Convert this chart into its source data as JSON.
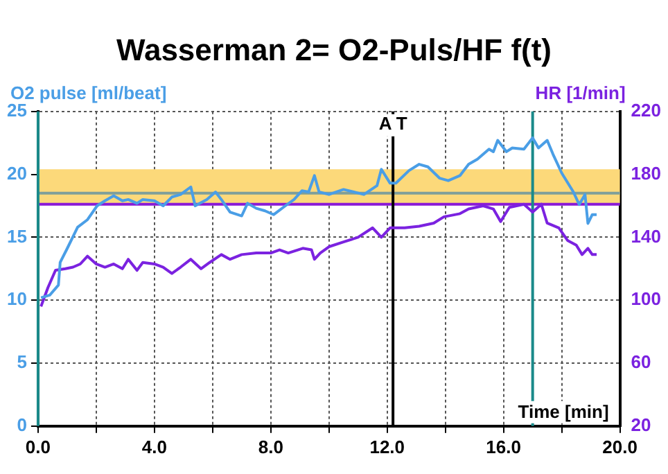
{
  "chart_data": {
    "type": "line",
    "title": "Wasserman 2= O2-Puls/HF f(t)",
    "xlabel": "Time [min]",
    "ylabel": "O2 pulse [ml/beat]",
    "y2label": "HR [1/min]",
    "series": [
      {
        "color": "#4a9ee6",
        "axis": "y",
        "x": [
          0.1,
          0.4,
          0.7,
          0.76,
          1.0,
          1.36,
          1.7,
          2.03,
          2.3,
          2.6,
          2.9,
          3.1,
          3.4,
          3.6,
          4.0,
          4.3,
          4.6,
          4.9,
          5.25,
          5.4,
          5.8,
          6.1,
          6.3,
          6.6,
          7.0,
          7.2,
          7.5,
          7.8,
          8.1,
          8.5,
          8.8,
          9.07,
          9.3,
          9.5,
          9.66,
          10.0,
          10.5,
          11.2,
          11.65,
          11.8,
          12.1,
          12.3,
          12.75,
          13.1,
          13.4,
          13.8,
          14.1,
          14.5,
          14.8,
          15.1,
          15.5,
          15.65,
          15.8,
          16.1,
          16.3,
          16.7,
          17.0,
          17.2,
          17.5,
          17.7,
          18.0,
          18.4,
          18.6,
          18.8,
          18.9,
          19.05,
          19.2
        ],
        "values": [
          10.2,
          10.4,
          11.2,
          13.0,
          14.1,
          15.8,
          16.4,
          17.5,
          17.9,
          18.3,
          17.9,
          18.0,
          17.7,
          18.0,
          17.9,
          17.5,
          18.2,
          18.4,
          19.0,
          17.5,
          18.0,
          18.6,
          18.0,
          17.0,
          16.7,
          17.7,
          17.3,
          17.1,
          16.8,
          17.5,
          18.0,
          18.7,
          18.6,
          19.9,
          18.6,
          18.4,
          18.8,
          18.4,
          19.1,
          20.4,
          19.3,
          19.3,
          20.3,
          20.8,
          20.6,
          19.7,
          19.5,
          19.9,
          20.8,
          21.2,
          22.0,
          21.8,
          22.7,
          21.8,
          22.1,
          22.0,
          22.9,
          22.1,
          22.7,
          21.6,
          20.1,
          18.6,
          17.6,
          18.4,
          16.1,
          16.8,
          16.8
        ]
      },
      {
        "color": "#7b22e0",
        "axis": "y2",
        "x": [
          0.1,
          0.34,
          0.6,
          0.94,
          1.2,
          1.45,
          1.7,
          2.0,
          2.3,
          2.6,
          2.9,
          3.1,
          3.4,
          3.6,
          4.0,
          4.3,
          4.6,
          4.9,
          5.25,
          5.6,
          5.9,
          6.3,
          6.6,
          7.0,
          7.5,
          8.0,
          8.3,
          8.6,
          9.1,
          9.4,
          9.5,
          9.7,
          10.0,
          10.5,
          11.0,
          11.5,
          11.8,
          12.1,
          12.6,
          13.1,
          13.6,
          13.95,
          14.5,
          14.8,
          15.3,
          15.65,
          15.9,
          16.2,
          16.7,
          17.0,
          17.3,
          17.5,
          17.9,
          18.2,
          18.5,
          18.7,
          18.9,
          19.05,
          19.2
        ],
        "values": [
          96,
          108,
          119,
          120,
          121,
          123,
          128,
          123,
          121,
          123,
          120,
          126,
          119,
          124,
          123,
          121,
          117,
          121,
          126,
          120,
          124,
          129,
          126,
          129,
          130,
          130,
          132,
          130,
          133,
          132,
          126,
          130,
          134,
          137,
          140,
          146,
          140,
          146,
          146,
          147,
          149,
          153,
          155,
          158,
          160,
          158,
          150,
          159,
          161,
          156,
          161,
          149,
          146,
          138,
          135,
          129,
          133,
          129,
          129
        ]
      }
    ],
    "xlim": [
      0,
      20
    ],
    "ylim": [
      0,
      25
    ],
    "y2lim": [
      20,
      220
    ],
    "xticks": [
      {
        "value": 0,
        "label": "0.0"
      },
      {
        "value": 2,
        "label": null
      },
      {
        "value": 4,
        "label": "4.0"
      },
      {
        "value": 6,
        "label": null
      },
      {
        "value": 8,
        "label": "8.0"
      },
      {
        "value": 10,
        "label": null
      },
      {
        "value": 12,
        "label": "12.0"
      },
      {
        "value": 14,
        "label": null
      },
      {
        "value": 16,
        "label": "16.0"
      },
      {
        "value": 18,
        "label": null
      },
      {
        "value": 20,
        "label": "20.0"
      }
    ],
    "yticks": [
      0,
      5,
      10,
      15,
      20,
      25
    ],
    "y2ticks": [
      20,
      60,
      100,
      140,
      180,
      220
    ],
    "bands": [
      {
        "axis": "y",
        "from": 17.7,
        "to": 20.4,
        "color": "#fcd97a"
      }
    ],
    "ref_lines": [
      {
        "axis": "y",
        "value": 18.5,
        "color": "#7f9f9a"
      },
      {
        "axis": "y2",
        "value": 161,
        "color": "#8a1ad6"
      },
      {
        "axis": "x",
        "value": 0,
        "color": "#1a8a8a"
      },
      {
        "axis": "x",
        "value": 12.2,
        "label": "A T",
        "color": "#000000"
      },
      {
        "axis": "x",
        "value": 17.0,
        "color": "#1a8a8a"
      }
    ],
    "grid": true,
    "legend": false,
    "marker": "none",
    "line_style": "solid"
  }
}
